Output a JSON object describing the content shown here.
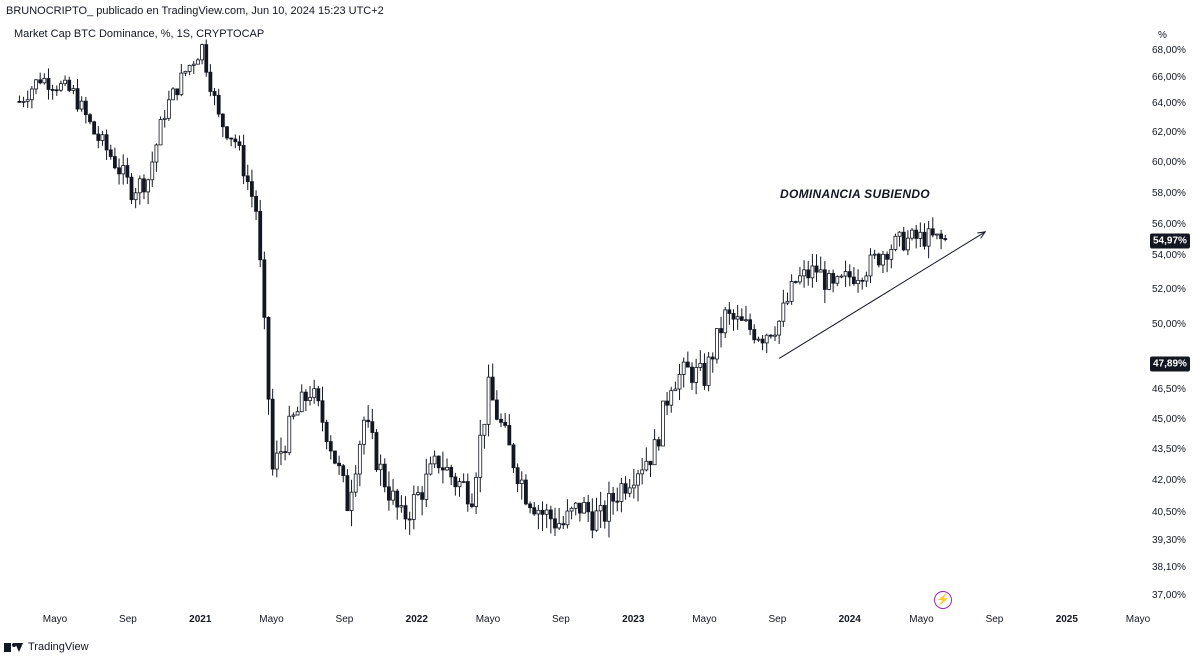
{
  "header": {
    "author_line": "BRUNOCRIPTO_ publicado en TradingView.com, Jun 10, 2024 15:23 UTC+2",
    "symbol_line": "Market Cap BTC Dominance, %, 1S, CRYPTOCAP"
  },
  "axis_unit": "%",
  "annotation": "DOMINANCIA SUBIENDO",
  "footer": {
    "brand": "TradingView"
  },
  "colors": {
    "candle": "#131722",
    "background": "#ffffff",
    "lightning": "#9c27b0"
  },
  "icons": [
    "tradingview-logo-icon",
    "lightning-icon",
    "trend-arrow-icon"
  ],
  "chart_data": {
    "type": "candlestick",
    "title": "",
    "y_tick_labels": [
      "68,00%",
      "66,00%",
      "64,00%",
      "62,00%",
      "60,00%",
      "58,00%",
      "56,00%",
      "54,00%",
      "52,00%",
      "50,00%",
      "46,50%",
      "45,00%",
      "43,50%",
      "42,00%",
      "40,50%",
      "39,30%",
      "38,10%",
      "37,00%"
    ],
    "y_tick_values": [
      68.0,
      66.0,
      64.0,
      62.0,
      60.0,
      58.0,
      56.0,
      54.0,
      52.0,
      50.0,
      46.5,
      45.0,
      43.5,
      42.0,
      40.5,
      39.3,
      38.1,
      37.0
    ],
    "x_tick_labels": [
      "Mayo",
      "Sep",
      "2021",
      "Mayo",
      "Sep",
      "2022",
      "Mayo",
      "Sep",
      "2023",
      "Mayo",
      "Sep",
      "2024",
      "Mayo",
      "Sep",
      "2025",
      "Mayo"
    ],
    "x_tick_is_year": [
      false,
      false,
      true,
      false,
      false,
      true,
      false,
      false,
      true,
      false,
      false,
      true,
      false,
      false,
      true,
      false
    ],
    "x_tick_dates": [
      "2020-05-01",
      "2020-09-01",
      "2021-01-01",
      "2021-05-01",
      "2021-09-01",
      "2022-01-01",
      "2022-05-01",
      "2022-09-01",
      "2023-01-01",
      "2023-05-01",
      "2023-09-01",
      "2024-01-01",
      "2024-05-01",
      "2024-09-01",
      "2025-01-01",
      "2025-05-01"
    ],
    "price_badges": [
      {
        "label": "54,97%",
        "value": 54.97
      },
      {
        "label": "47,89%",
        "value": 47.89
      }
    ],
    "trendline": {
      "from": {
        "date": "2023-09-04",
        "value": 48.2
      },
      "to": {
        "date": "2024-06-10",
        "value": 55.3
      }
    },
    "close_series": [
      {
        "date": "2020-03-02",
        "close": 64.2
      },
      {
        "date": "2020-04-06",
        "close": 66.0
      },
      {
        "date": "2020-05-04",
        "close": 65.5
      },
      {
        "date": "2020-06-01",
        "close": 64.8
      },
      {
        "date": "2020-07-06",
        "close": 62.0
      },
      {
        "date": "2020-08-03",
        "close": 60.5
      },
      {
        "date": "2020-09-07",
        "close": 58.3
      },
      {
        "date": "2020-10-05",
        "close": 59.0
      },
      {
        "date": "2020-11-02",
        "close": 63.5
      },
      {
        "date": "2020-12-07",
        "close": 66.5
      },
      {
        "date": "2021-01-04",
        "close": 68.3
      },
      {
        "date": "2021-02-01",
        "close": 63.0
      },
      {
        "date": "2021-03-01",
        "close": 61.5
      },
      {
        "date": "2021-04-05",
        "close": 57.0
      },
      {
        "date": "2021-05-03",
        "close": 42.5
      },
      {
        "date": "2021-06-07",
        "close": 45.0
      },
      {
        "date": "2021-07-05",
        "close": 46.5
      },
      {
        "date": "2021-08-02",
        "close": 44.5
      },
      {
        "date": "2021-09-06",
        "close": 41.0
      },
      {
        "date": "2021-10-04",
        "close": 45.0
      },
      {
        "date": "2021-11-01",
        "close": 42.5
      },
      {
        "date": "2021-12-06",
        "close": 40.2
      },
      {
        "date": "2022-01-03",
        "close": 41.3
      },
      {
        "date": "2022-02-07",
        "close": 43.0
      },
      {
        "date": "2022-03-07",
        "close": 42.0
      },
      {
        "date": "2022-04-04",
        "close": 41.5
      },
      {
        "date": "2022-05-02",
        "close": 46.5
      },
      {
        "date": "2022-06-06",
        "close": 43.5
      },
      {
        "date": "2022-07-04",
        "close": 41.5
      },
      {
        "date": "2022-08-01",
        "close": 40.5
      },
      {
        "date": "2022-09-05",
        "close": 40.0
      },
      {
        "date": "2022-10-03",
        "close": 40.8
      },
      {
        "date": "2022-11-07",
        "close": 40.2
      },
      {
        "date": "2022-12-05",
        "close": 41.5
      },
      {
        "date": "2023-01-02",
        "close": 42.5
      },
      {
        "date": "2023-02-06",
        "close": 43.5
      },
      {
        "date": "2023-03-06",
        "close": 47.0
      },
      {
        "date": "2023-04-03",
        "close": 47.5
      },
      {
        "date": "2023-05-01",
        "close": 47.2
      },
      {
        "date": "2023-06-05",
        "close": 50.5
      },
      {
        "date": "2023-07-03",
        "close": 50.0
      },
      {
        "date": "2023-08-07",
        "close": 49.5
      },
      {
        "date": "2023-09-04",
        "close": 50.2
      },
      {
        "date": "2023-10-02",
        "close": 52.5
      },
      {
        "date": "2023-11-06",
        "close": 53.2
      },
      {
        "date": "2023-12-04",
        "close": 52.0
      },
      {
        "date": "2024-01-01",
        "close": 52.8
      },
      {
        "date": "2024-02-05",
        "close": 53.5
      },
      {
        "date": "2024-03-04",
        "close": 54.5
      },
      {
        "date": "2024-04-01",
        "close": 55.0
      },
      {
        "date": "2024-05-06",
        "close": 55.2
      },
      {
        "date": "2024-06-10",
        "close": 54.97
      }
    ]
  }
}
